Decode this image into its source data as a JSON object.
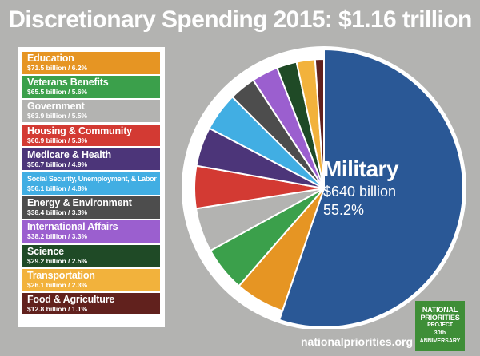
{
  "chart_data": {
    "type": "pie",
    "title": "Discretionary Spending 2015: $1.16 trillion",
    "slices": [
      {
        "name": "Military",
        "amount": "$640 billion",
        "percent_label": "55.2%",
        "value": 55.2,
        "color": "#2a5896"
      },
      {
        "name": "Education",
        "amount": "$71.5 billion",
        "percent_label": "6.2%",
        "value": 6.2,
        "color": "#e69523"
      },
      {
        "name": "Veterans Benefits",
        "amount": "$65.5 billion",
        "percent_label": "5.6%",
        "value": 5.6,
        "color": "#3ba04b"
      },
      {
        "name": "Government",
        "amount": "$63.9 billion",
        "percent_label": "5.5%",
        "value": 5.5,
        "color": "#b3b3b1"
      },
      {
        "name": "Housing & Community",
        "amount": "$60.9 billion",
        "percent_label": "5.3%",
        "value": 5.3,
        "color": "#d33a33"
      },
      {
        "name": "Medicare & Health",
        "amount": "$56.7 billion",
        "percent_label": "4.9%",
        "value": 4.9,
        "color": "#4c3579"
      },
      {
        "name": "Social Security, Unemployment, & Labor",
        "amount": "$56.1 billion",
        "percent_label": "4.8%",
        "value": 4.8,
        "color": "#41aee3"
      },
      {
        "name": "Energy & Environment",
        "amount": "$38.4 billion",
        "percent_label": "3.3%",
        "value": 3.3,
        "color": "#4d4d4d"
      },
      {
        "name": "International Affairs",
        "amount": "$38.2 billion",
        "percent_label": "3.3%",
        "value": 3.3,
        "color": "#9b5fcf"
      },
      {
        "name": "Science",
        "amount": "$29.2 billion",
        "percent_label": "2.5%",
        "value": 2.5,
        "color": "#1f4a26"
      },
      {
        "name": "Transportation",
        "amount": "$26.1 billion",
        "percent_label": "2.3%",
        "value": 2.3,
        "color": "#f2b23c"
      },
      {
        "name": "Food & Agriculture",
        "amount": "$12.8 billion",
        "percent_label": "1.1%",
        "value": 1.1,
        "color": "#61211d"
      }
    ]
  },
  "source": "nationalpriorities.org",
  "logo": {
    "line1": "NATIONAL",
    "line2": "PRIORITIES",
    "line3": "PROJECT",
    "anniversary_number": "30th",
    "anniversary_word": "ANNIVERSARY"
  }
}
